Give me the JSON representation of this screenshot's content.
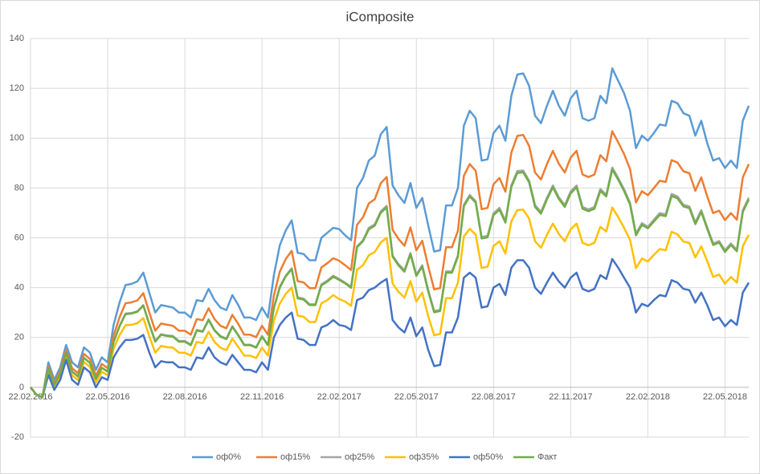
{
  "chart_data": {
    "type": "line",
    "title": "iComposite",
    "categories": [
      "22.02.2016",
      null,
      null,
      null,
      null,
      null,
      null,
      null,
      null,
      null,
      null,
      null,
      null,
      "22.05.2016",
      null,
      null,
      null,
      null,
      null,
      null,
      null,
      null,
      null,
      null,
      null,
      null,
      "22.08.2016",
      null,
      null,
      null,
      null,
      null,
      null,
      null,
      null,
      null,
      null,
      null,
      null,
      "22.11.2016",
      null,
      null,
      null,
      null,
      null,
      null,
      null,
      null,
      null,
      null,
      null,
      null,
      "22.02.2017",
      null,
      null,
      null,
      null,
      null,
      null,
      null,
      null,
      null,
      null,
      null,
      null,
      "22.05.2017",
      null,
      null,
      null,
      null,
      null,
      null,
      null,
      null,
      null,
      null,
      null,
      null,
      "22.08.2017",
      null,
      null,
      null,
      null,
      null,
      null,
      null,
      null,
      null,
      null,
      null,
      null,
      "22.11.2017",
      null,
      null,
      null,
      null,
      null,
      null,
      null,
      null,
      null,
      null,
      null,
      null,
      "22.02.2018",
      null,
      null,
      null,
      null,
      null,
      null,
      null,
      null,
      null,
      null,
      null,
      null,
      "22.05.2018",
      null,
      null,
      null,
      null
    ],
    "series": [
      {
        "name": "оф0%",
        "color": "#5b9bd5",
        "values": [
          0,
          -3,
          -4,
          10,
          3,
          8,
          17,
          10,
          8,
          16,
          14,
          7,
          12,
          10,
          25,
          34,
          41,
          41.5,
          42.5,
          46,
          38,
          30,
          33,
          32.5,
          32,
          30,
          30,
          28,
          35,
          34.5,
          39.5,
          35,
          32,
          31,
          37,
          33,
          28,
          28,
          27,
          32,
          28,
          45,
          57,
          63,
          67,
          54,
          53.5,
          51,
          51,
          60,
          62,
          64,
          63.5,
          61,
          59,
          80,
          84,
          91,
          93,
          101.5,
          104.5,
          81,
          77,
          74,
          82,
          72,
          76,
          65,
          54.5,
          55,
          73,
          73,
          80,
          105,
          111,
          108,
          91,
          91.5,
          102,
          105,
          99,
          117,
          125.5,
          126,
          121,
          109,
          106,
          113,
          119,
          113,
          109,
          116,
          119,
          108,
          107,
          108,
          117,
          114,
          128,
          123,
          118,
          111,
          96,
          101,
          99,
          102,
          105.5,
          105,
          115,
          114,
          110,
          109,
          101,
          107,
          98,
          91,
          92,
          88,
          91,
          88,
          107,
          113
        ]
      },
      {
        "name": "оф15%",
        "color": "#ed7d31",
        "values": [
          0,
          -3,
          -4,
          8.4,
          1.7,
          6.4,
          15,
          7.7,
          5.7,
          13.4,
          11.4,
          4.7,
          9.4,
          7.7,
          20.7,
          28.1,
          33.7,
          34.1,
          34.9,
          37.8,
          30.1,
          22.7,
          25.6,
          25.1,
          24.7,
          22.7,
          22.7,
          21.1,
          27.4,
          26.9,
          31.7,
          27.4,
          24.7,
          23.7,
          29.1,
          25.4,
          21.1,
          21.1,
          20.1,
          24.7,
          21.1,
          36.8,
          46.4,
          51.5,
          54.8,
          42.6,
          42.1,
          39.8,
          39.8,
          48.1,
          49.8,
          51.8,
          50.8,
          49,
          47.1,
          65.2,
          68.2,
          73.8,
          75.5,
          81.9,
          84.4,
          63.2,
          59.5,
          56.8,
          64.2,
          55,
          58.8,
          48.5,
          39.3,
          39.8,
          56.2,
          56.2,
          62.8,
          84.9,
          89.6,
          86.9,
          71.5,
          72,
          81.5,
          84,
          78.5,
          94.2,
          100.9,
          101.3,
          96.9,
          86.2,
          83.4,
          89.6,
          94.9,
          89.7,
          86.2,
          92.2,
          94.9,
          85.4,
          84.4,
          85.4,
          93.2,
          90.7,
          102.8,
          98.3,
          93.6,
          87.6,
          74.2,
          78.7,
          77.1,
          79.9,
          82.9,
          82.4,
          91.2,
          90.2,
          86.7,
          85.9,
          78.9,
          84.2,
          76.6,
          69.9,
          70.9,
          67.1,
          69.9,
          67.2,
          84.2,
          89.6
        ]
      },
      {
        "name": "оф25%",
        "color": "#a5a5a5",
        "values": [
          0,
          -3,
          -4,
          7.4,
          0.9,
          5.4,
          13.9,
          6.4,
          4.4,
          11.8,
          9.8,
          3.4,
          7.8,
          6.4,
          18.2,
          24.6,
          29.6,
          29.8,
          30.5,
          33,
          25.5,
          18.6,
          21.3,
          20.8,
          20.6,
          18.6,
          18.6,
          17.1,
          23,
          22.5,
          27.3,
          23,
          20.6,
          19.6,
          24.5,
          21,
          17.1,
          17.1,
          16.1,
          20.6,
          17.1,
          32,
          40.4,
          44.8,
          47.8,
          36.1,
          35.6,
          33.3,
          33.3,
          41.3,
          42.8,
          44.8,
          43.5,
          42,
          40.3,
          56.6,
          59,
          64,
          65.4,
          70.6,
          72.8,
          52.9,
          49.4,
          47,
          53.9,
          45.2,
          49,
          39,
          30.6,
          31.1,
          46.5,
          46.5,
          53,
          73.3,
          77.2,
          74.7,
          60.3,
          60.8,
          69.8,
          72,
          66.8,
          81.1,
          86.8,
          87,
          83,
          73.1,
          70.4,
          76.1,
          81,
          76.3,
          73.1,
          78.6,
          81,
          72.4,
          71.4,
          72.4,
          79.6,
          77.3,
          88.2,
          84,
          79.5,
          74.1,
          61.7,
          65.9,
          64.4,
          67.2,
          69.9,
          69.4,
          77.6,
          76.6,
          73.3,
          72.6,
          66.2,
          71.1,
          64.2,
          57.7,
          58.7,
          55,
          57.7,
          55.2,
          71.1,
          76.1
        ]
      },
      {
        "name": "оф35%",
        "color": "#ffc000",
        "values": [
          0,
          -3,
          -4,
          6.4,
          0.1,
          4.4,
          12.6,
          4.9,
          2.9,
          10.2,
          8.2,
          1.9,
          6.2,
          4.9,
          15.5,
          20.9,
          24.9,
          25.1,
          25.7,
          27.8,
          20.5,
          13.9,
          16.6,
          16.1,
          15.9,
          13.9,
          13.9,
          12.7,
          18.2,
          17.7,
          22.3,
          18.2,
          15.9,
          14.9,
          19.5,
          16.2,
          12.7,
          12.7,
          11.7,
          15.9,
          12.7,
          26.8,
          33.6,
          37.5,
          40,
          28.8,
          28.3,
          26.2,
          26.2,
          33.7,
          35,
          37,
          35.4,
          34.4,
          32.7,
          47.2,
          49,
          53,
          54.3,
          58.1,
          60,
          41.6,
          38.3,
          36,
          42.6,
          34.4,
          38,
          28.5,
          20.9,
          21.4,
          35.8,
          35.8,
          42,
          60.5,
          63.6,
          61.3,
          47.9,
          48.4,
          56.7,
          58.6,
          53.7,
          66.6,
          71.1,
          71.3,
          67.7,
          58.6,
          56,
          61.2,
          65.7,
          61.5,
          58.6,
          63.4,
          65.7,
          58,
          57,
          58,
          64.4,
          62.5,
          72.2,
          68.3,
          64,
          59.2,
          47.8,
          51.7,
          50.5,
          53.1,
          55.5,
          55,
          62.4,
          61.4,
          58.5,
          57.9,
          52.1,
          56.6,
          50.6,
          44.3,
          45.3,
          41.6,
          44.3,
          42,
          56.6,
          61.2
        ]
      },
      {
        "name": "оф50%",
        "color": "#4472c4",
        "values": [
          0,
          -3,
          -4,
          5,
          -1,
          3,
          11,
          3,
          1,
          8,
          6,
          0,
          4,
          3,
          12,
          16,
          19,
          19,
          19.5,
          21,
          14,
          8,
          10.5,
          10,
          10,
          8,
          8,
          7,
          12,
          11.5,
          16,
          12,
          10,
          9,
          13,
          10,
          7,
          7,
          6,
          10,
          7,
          20,
          25,
          28,
          30,
          19.5,
          19,
          17,
          17,
          24,
          25,
          27,
          25,
          24.5,
          23,
          35,
          36,
          39,
          40,
          42,
          43.5,
          27,
          24,
          22,
          28,
          20.5,
          24,
          15,
          8.5,
          9,
          22,
          22,
          28,
          44,
          46,
          44,
          32,
          32.5,
          40,
          41.5,
          37,
          48,
          51,
          51,
          48,
          40,
          37.5,
          42,
          46,
          42.5,
          40,
          44,
          46,
          39.5,
          38.5,
          39.5,
          45,
          43.5,
          51.5,
          48,
          44,
          40,
          30,
          33.5,
          32.5,
          35,
          37,
          36.5,
          43,
          42,
          39.5,
          39,
          34,
          38,
          33,
          27,
          28,
          24.5,
          27,
          25,
          38,
          42
        ]
      },
      {
        "name": "Факт",
        "color": "#70ad47",
        "values": [
          0,
          -3,
          -4,
          7.4,
          0.9,
          5.4,
          13.8,
          6.3,
          4.3,
          11.8,
          9.8,
          3.3,
          7.8,
          6.3,
          18.1,
          24.5,
          29.3,
          29.6,
          30.3,
          32.8,
          25.3,
          18.3,
          21.1,
          20.6,
          20.3,
          18.3,
          18.3,
          16.9,
          22.8,
          22.3,
          27,
          22.8,
          20.3,
          19.3,
          24.3,
          20.8,
          16.9,
          16.9,
          15.9,
          20.3,
          16.9,
          31.8,
          40,
          44.5,
          47.4,
          35.7,
          35.2,
          33,
          33,
          40.9,
          42.4,
          44.4,
          43.1,
          41.7,
          39.9,
          56.2,
          58.6,
          63.4,
          64.9,
          70,
          72.2,
          52.4,
          48.9,
          46.4,
          53.4,
          44.7,
          48.4,
          38.5,
          30.1,
          30.6,
          46,
          46,
          52.4,
          72.7,
          76.6,
          74.1,
          59.7,
          60.2,
          69.1,
          71.3,
          66.1,
          80.4,
          86,
          86.3,
          82.3,
          72.4,
          69.7,
          75.4,
          80.3,
          75.6,
          72.4,
          77.8,
          80.3,
          71.7,
          70.7,
          71.7,
          78.8,
          76.6,
          87.5,
          83.3,
          78.8,
          73.4,
          61,
          65.2,
          63.8,
          66.5,
          69.2,
          68.7,
          76.8,
          75.8,
          72.6,
          71.9,
          65.5,
          70.4,
          63.6,
          57.1,
          58.1,
          54.3,
          57.1,
          54.6,
          70.4,
          75.4
        ]
      }
    ],
    "ylim": [
      -20,
      140
    ],
    "yticks": [
      -20,
      0,
      20,
      40,
      60,
      80,
      100,
      120,
      140
    ],
    "grid": true,
    "legend": "bottom"
  }
}
